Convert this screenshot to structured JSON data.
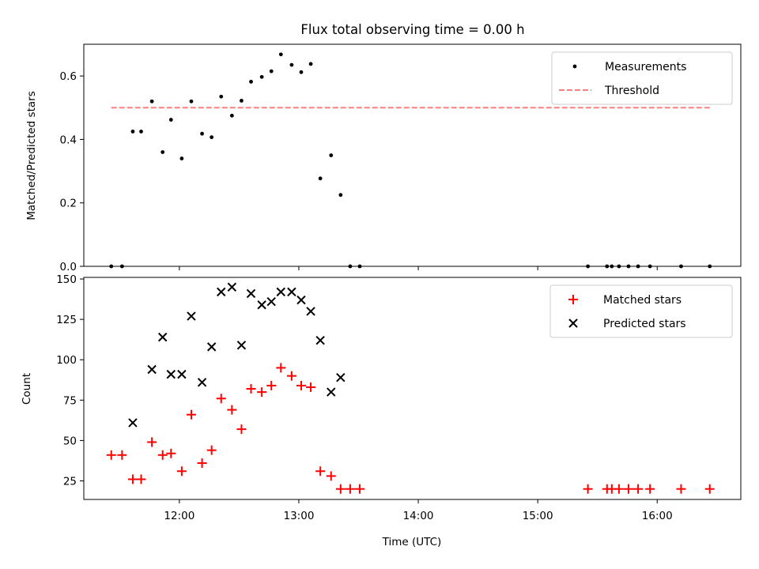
{
  "title": "Flux total observing time = 0.00 h",
  "chart_data": [
    {
      "type": "scatter",
      "ylabel": "Matched/Predicted stars",
      "ylim": [
        0,
        0.7
      ],
      "yticks": [
        "0.0",
        "0.2",
        "0.4",
        "0.6"
      ],
      "ytick_values": [
        0.0,
        0.2,
        0.4,
        0.6
      ],
      "xlim_hours": [
        11.2,
        16.7
      ],
      "legend_position": "top-right",
      "series": [
        {
          "name": "Measurements",
          "marker": "dot",
          "color": "#000000",
          "x": [
            11.43,
            11.52,
            11.68,
            11.77,
            11.86,
            11.93,
            12.02,
            12.1,
            12.19,
            12.27,
            12.35,
            12.44,
            12.52,
            12.6,
            12.69,
            12.77,
            12.85,
            12.94,
            13.02,
            13.1,
            13.18,
            13.27,
            13.35,
            13.43,
            13.51,
            15.42,
            15.58,
            15.62,
            15.68,
            15.76,
            15.84,
            15.94,
            16.2,
            16.44
          ],
          "y": [
            0.0,
            0.0,
            0.425,
            0.52,
            0.36,
            0.462,
            0.34,
            0.52,
            0.418,
            0.407,
            0.535,
            0.475,
            0.522,
            0.582,
            0.597,
            0.615,
            0.668,
            0.635,
            0.612,
            0.638,
            0.277,
            0.35,
            0.225,
            0.0,
            0.0,
            0.0,
            0.0,
            0.0,
            0.0,
            0.0,
            0.0,
            0.0,
            0.0,
            0.0
          ],
          "extra_points": [
            {
              "x": 11.61,
              "y": 0.425
            }
          ]
        },
        {
          "name": "Threshold",
          "style": "dashed",
          "color": "#ff7f7f",
          "x": [
            11.43,
            16.44
          ],
          "y": [
            0.5,
            0.5
          ]
        }
      ]
    },
    {
      "type": "scatter",
      "ylabel": "Count",
      "xlabel": "Time (UTC)",
      "ylim": [
        13.5,
        151
      ],
      "yticks": [
        "25",
        "50",
        "75",
        "100",
        "125",
        "150"
      ],
      "ytick_values": [
        25,
        50,
        75,
        100,
        125,
        150
      ],
      "xlim_hours": [
        11.2,
        16.7
      ],
      "xticks": [
        "12:00",
        "13:00",
        "14:00",
        "15:00",
        "16:00"
      ],
      "xtick_values": [
        12,
        13,
        14,
        15,
        16
      ],
      "legend_position": "top-right",
      "series": [
        {
          "name": "Matched stars",
          "marker": "plus",
          "color": "#ff0000",
          "x": [
            11.43,
            11.52,
            11.61,
            11.68,
            11.77,
            11.86,
            11.93,
            12.02,
            12.1,
            12.19,
            12.27,
            12.35,
            12.44,
            12.52,
            12.6,
            12.69,
            12.77,
            12.85,
            12.94,
            13.02,
            13.1,
            13.18,
            13.27,
            13.35,
            13.43,
            13.51,
            15.42,
            15.58,
            15.62,
            15.68,
            15.76,
            15.84,
            15.94,
            16.2,
            16.44
          ],
          "y": [
            41,
            41,
            26,
            26,
            49,
            41,
            42,
            31,
            66,
            36,
            44,
            76,
            69,
            57,
            82,
            80,
            84,
            95,
            90,
            84,
            83,
            31,
            28,
            20,
            20,
            20,
            20,
            20,
            20,
            20,
            20,
            20,
            20,
            20,
            20
          ]
        },
        {
          "name": "Predicted stars",
          "marker": "x",
          "color": "#000000",
          "x": [
            11.61,
            11.77,
            11.86,
            11.93,
            12.02,
            12.1,
            12.19,
            12.27,
            12.35,
            12.44,
            12.52,
            12.6,
            12.69,
            12.77,
            12.85,
            12.94,
            13.02,
            13.1,
            13.18,
            13.27,
            13.35
          ],
          "y": [
            61,
            94,
            114,
            91,
            91,
            127,
            86,
            108,
            142,
            145,
            109,
            141,
            134,
            136,
            142,
            142,
            137,
            130,
            112,
            80,
            89
          ]
        }
      ]
    }
  ]
}
